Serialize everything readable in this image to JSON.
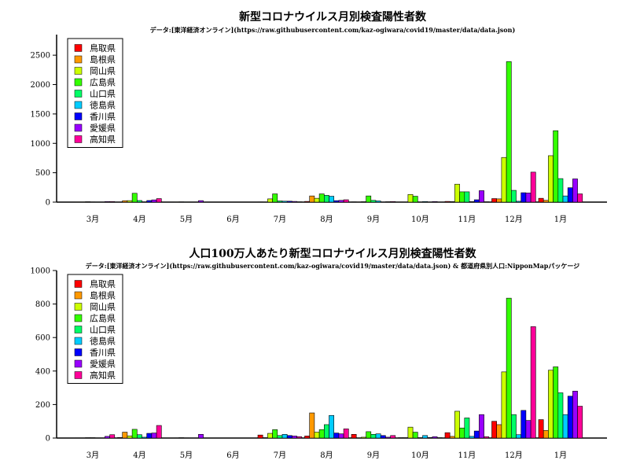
{
  "chart_data": [
    {
      "type": "bar",
      "title": "新型コロナウイルス月別検査陽性者数",
      "subtitle": "データ:[東洋経済オンライン](https://raw.githubusercontent.com/kaz-ogiwara/covid19/master/data/data.json)",
      "xlabel": "",
      "ylabel": "",
      "ylim": [
        0,
        2850
      ],
      "yticks": [
        0,
        500,
        1000,
        1500,
        2000,
        2500
      ],
      "grid": false,
      "legend": "top-left",
      "categories": [
        "3月",
        "4月",
        "5月",
        "6月",
        "7月",
        "8月",
        "9月",
        "10月",
        "11月",
        "12月",
        "1月"
      ],
      "series": [
        {
          "name": "鳥取県",
          "color": "#ff0000",
          "values": [
            0,
            2,
            0,
            0,
            3,
            12,
            4,
            1,
            12,
            60,
            65
          ]
        },
        {
          "name": "島根県",
          "color": "#ff9900",
          "values": [
            1,
            24,
            0,
            0,
            2,
            105,
            1,
            2,
            8,
            55,
            30
          ]
        },
        {
          "name": "岡山県",
          "color": "#ccff00",
          "values": [
            2,
            25,
            1,
            0,
            55,
            65,
            6,
            130,
            305,
            760,
            790
          ]
        },
        {
          "name": "広島県",
          "color": "#33ff00",
          "values": [
            6,
            150,
            4,
            0,
            140,
            140,
            105,
            100,
            175,
            2390,
            1215
          ]
        },
        {
          "name": "山口県",
          "color": "#00ff66",
          "values": [
            3,
            27,
            1,
            0,
            20,
            115,
            30,
            2,
            175,
            200,
            400
          ]
        },
        {
          "name": "徳島県",
          "color": "#00ccff",
          "values": [
            1,
            4,
            0,
            0,
            16,
            100,
            20,
            10,
            8,
            15,
            105
          ]
        },
        {
          "name": "香川県",
          "color": "#0000ff",
          "values": [
            1,
            27,
            0,
            0,
            16,
            25,
            2,
            1,
            40,
            160,
            245
          ]
        },
        {
          "name": "愛媛県",
          "color": "#9900ff",
          "values": [
            10,
            38,
            25,
            0,
            12,
            30,
            6,
            10,
            195,
            155,
            395
          ]
        },
        {
          "name": "高知県",
          "color": "#ff0099",
          "values": [
            10,
            60,
            0,
            0,
            5,
            40,
            10,
            1,
            5,
            510,
            140
          ]
        }
      ]
    },
    {
      "type": "bar",
      "title": "人口100万人あたり新型コロナウイルス月別検査陽性者数",
      "subtitle": "データ:[東洋経済オンライン](https://raw.githubusercontent.com/kaz-ogiwara/covid19/master/data/data.json) & 都道府県別人口:NipponMapパッケージ",
      "xlabel": "",
      "ylabel": "",
      "ylim": [
        0,
        1000
      ],
      "yticks": [
        0,
        200,
        400,
        600,
        800,
        1000
      ],
      "grid": false,
      "legend": "top-left",
      "categories": [
        "3月",
        "4月",
        "5月",
        "6月",
        "7月",
        "8月",
        "9月",
        "10月",
        "11月",
        "12月",
        "1月"
      ],
      "series": [
        {
          "name": "鳥取県",
          "color": "#ff0000",
          "values": [
            0,
            3,
            0,
            0,
            18,
            12,
            22,
            2,
            32,
            100,
            110
          ]
        },
        {
          "name": "島根県",
          "color": "#ff9900",
          "values": [
            1,
            35,
            0,
            0,
            2,
            150,
            1,
            2,
            10,
            80,
            45
          ]
        },
        {
          "name": "岡山県",
          "color": "#ccff00",
          "values": [
            1,
            13,
            1,
            0,
            28,
            35,
            5,
            65,
            160,
            395,
            405
          ]
        },
        {
          "name": "広島県",
          "color": "#33ff00",
          "values": [
            2,
            52,
            2,
            0,
            50,
            50,
            38,
            35,
            60,
            835,
            425
          ]
        },
        {
          "name": "山口県",
          "color": "#00ff66",
          "values": [
            2,
            20,
            1,
            0,
            15,
            80,
            22,
            2,
            120,
            140,
            270
          ]
        },
        {
          "name": "徳島県",
          "color": "#00ccff",
          "values": [
            1,
            5,
            0,
            0,
            22,
            135,
            25,
            15,
            10,
            20,
            140
          ]
        },
        {
          "name": "香川県",
          "color": "#0000ff",
          "values": [
            1,
            28,
            0,
            0,
            15,
            30,
            15,
            3,
            42,
            165,
            250
          ]
        },
        {
          "name": "愛媛県",
          "color": "#9900ff",
          "values": [
            10,
            30,
            22,
            0,
            12,
            25,
            5,
            8,
            140,
            105,
            280
          ]
        },
        {
          "name": "高知県",
          "color": "#ff0099",
          "values": [
            20,
            75,
            0,
            0,
            8,
            55,
            15,
            2,
            8,
            665,
            190
          ]
        }
      ]
    }
  ]
}
